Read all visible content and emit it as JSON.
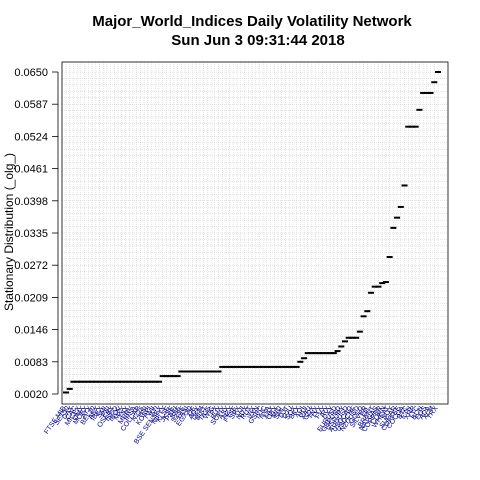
{
  "chart_data": {
    "type": "scatter",
    "title": "Major_World_Indices  Daily Volatility Network",
    "subtitle": "Sun Jun  3 09:31:44 2018",
    "xlabel": "",
    "ylabel": "Stationary Distribution (_olg_)",
    "ylim": [
      0.002,
      0.065
    ],
    "yticks": [
      "0.0020",
      "0.0083",
      "0.0146",
      "0.0209",
      "0.0272",
      "0.0335",
      "0.0398",
      "0.0461",
      "0.0524",
      "0.0587",
      "0.0650"
    ],
    "grid": true,
    "point_marker": "dash",
    "point_color": "#000000",
    "xtick_color": "#00008b",
    "values": [
      0.0023,
      0.003,
      0.0044,
      0.0044,
      0.0044,
      0.0044,
      0.0044,
      0.0044,
      0.0044,
      0.0044,
      0.0044,
      0.0044,
      0.0044,
      0.0044,
      0.0044,
      0.0044,
      0.0044,
      0.0044,
      0.0044,
      0.0044,
      0.0044,
      0.0044,
      0.0044,
      0.0044,
      0.0044,
      0.0044,
      0.0055,
      0.0055,
      0.0055,
      0.0055,
      0.0055,
      0.0064,
      0.0064,
      0.0064,
      0.0064,
      0.0064,
      0.0064,
      0.0064,
      0.0064,
      0.0064,
      0.0064,
      0.0064,
      0.0073,
      0.0073,
      0.0073,
      0.0073,
      0.0073,
      0.0073,
      0.0073,
      0.0073,
      0.0073,
      0.0073,
      0.0073,
      0.0073,
      0.0073,
      0.0073,
      0.0073,
      0.0073,
      0.0073,
      0.0073,
      0.0073,
      0.0073,
      0.0073,
      0.0083,
      0.009,
      0.01,
      0.01,
      0.01,
      0.01,
      0.01,
      0.01,
      0.01,
      0.01,
      0.0104,
      0.0113,
      0.0123,
      0.013,
      0.013,
      0.013,
      0.0142,
      0.0172,
      0.0182,
      0.0218,
      0.023,
      0.023,
      0.0237,
      0.0239,
      0.0288,
      0.0345,
      0.0365,
      0.0386,
      0.0428,
      0.0543,
      0.0543,
      0.0543,
      0.0576,
      0.0609,
      0.0609,
      0.0609,
      0.063,
      0.065
    ],
    "xtick_labels": [
      "FTSE MIB",
      "SET50",
      "DAX",
      "CAC",
      "MICEX",
      "OMX",
      "MOEX",
      "ATX",
      "BEL20",
      "AEX",
      "IBEX",
      "SMI",
      "PSI",
      "OSEBX",
      "ISEQ",
      "IBOV",
      "MXX",
      "TSX",
      "MERV",
      "IPSA",
      "COLCAP",
      "N225",
      "HSI",
      "KOSPI",
      "TWII",
      "STI",
      "BSE SENSEX",
      "NIFTY",
      "KLSE",
      "JKSE",
      "PSEI",
      "SSE",
      "SZSE",
      "TASI",
      "EGX30",
      "QE",
      "ADX",
      "DFM",
      "BIST",
      "TA35",
      "WIG",
      "PX",
      "BUX",
      "SOFIX",
      "ASX",
      "NZX",
      "FTSE",
      "SPX",
      "DJI",
      "NDX",
      "RUT",
      "VIX",
      "VXN",
      "GSPC",
      "IXIC",
      "NYA",
      "XAX",
      "OEX",
      "MID",
      "SML",
      "DJT",
      "DJU",
      "SOX",
      "BKX",
      "XOI",
      "HUI",
      "XAU",
      "GDX",
      "TNX",
      "TYX",
      "FVX",
      "IRX",
      "DXY",
      "EURUSD",
      "GBPUSD",
      "USDJPY",
      "AUDUSD",
      "USDCAD",
      "USDCHF",
      "NZDUSD",
      "GOLD",
      "SILVER",
      "OIL",
      "BRENT",
      "NATGAS",
      "COPPER",
      "CORN",
      "WHEAT",
      "SOY",
      "SUGAR",
      "COFFEE",
      "COCOA",
      "BTC",
      "ETH",
      "XRP",
      "LTC",
      "BCH",
      "EOS",
      "ADA",
      "XLM",
      "TRX"
    ]
  }
}
